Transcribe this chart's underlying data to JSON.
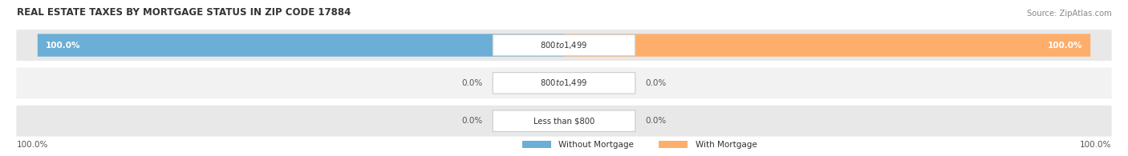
{
  "title": "REAL ESTATE TAXES BY MORTGAGE STATUS IN ZIP CODE 17884",
  "source": "Source: ZipAtlas.com",
  "rows": [
    {
      "label": "Less than $800",
      "without_mortgage": 0.0,
      "with_mortgage": 0.0
    },
    {
      "label": "$800 to $1,499",
      "without_mortgage": 0.0,
      "with_mortgage": 0.0
    },
    {
      "label": "$800 to $1,499",
      "without_mortgage": 100.0,
      "with_mortgage": 100.0
    }
  ],
  "color_without": "#6baed6",
  "color_with": "#fdae6b",
  "row_bg_colors": [
    "#e8e8e8",
    "#f2f2f2",
    "#e8e8e8"
  ],
  "bar_height": 0.58,
  "figsize": [
    14.06,
    1.95
  ],
  "dpi": 100
}
